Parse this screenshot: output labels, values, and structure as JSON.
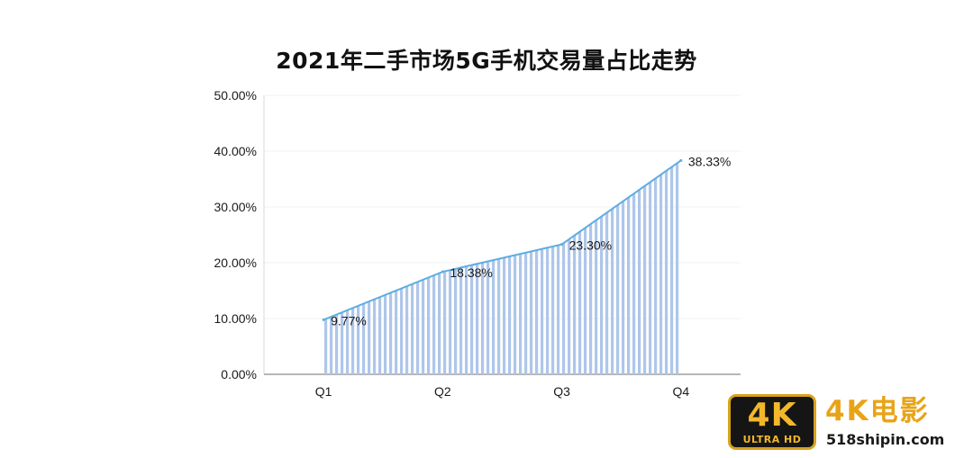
{
  "chart_data": {
    "type": "area",
    "title": "2021年二手市场5G手机交易量占比走势",
    "categories": [
      "Q1",
      "Q2",
      "Q3",
      "Q4"
    ],
    "values": [
      9.77,
      18.38,
      23.3,
      38.33
    ],
    "value_labels": [
      "9.77%",
      "18.38%",
      "23.30%",
      "38.33%"
    ],
    "ylim": [
      0,
      50
    ],
    "y_ticks": [
      0,
      10,
      20,
      30,
      40,
      50
    ],
    "y_tick_labels": [
      "0.00%",
      "10.00%",
      "20.00%",
      "30.00%",
      "40.00%",
      "50.00%"
    ],
    "grid": true,
    "legend": "none",
    "line_color": "#5dade2",
    "fill_stripe_color": "#aec6ea"
  },
  "watermark": {
    "badge_big": "4K",
    "badge_small": "ULTRA HD",
    "brand": "4K电影",
    "url": "518shipin.com"
  }
}
